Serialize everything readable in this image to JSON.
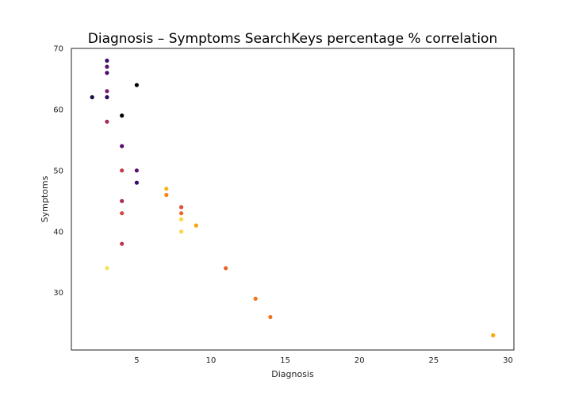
{
  "chart_data": {
    "type": "scatter",
    "title": "Diagnosis – Symptoms SearchKeys percentage % correlation",
    "xlabel": "Diagnosis",
    "ylabel": "Symptoms",
    "xlim": [
      0.6,
      30.4
    ],
    "ylim": [
      20.6,
      70.0
    ],
    "xticks": [
      5,
      10,
      15,
      20,
      25,
      30
    ],
    "yticks": [
      30,
      40,
      50,
      60,
      70
    ],
    "grid": false,
    "colormap": "inferno",
    "points": [
      {
        "x": 3,
        "y": 68,
        "color": "#3b0f70"
      },
      {
        "x": 3,
        "y": 67,
        "color": "#5c126e"
      },
      {
        "x": 3,
        "y": 66,
        "color": "#4a0c6b"
      },
      {
        "x": 5,
        "y": 64,
        "color": "#000004"
      },
      {
        "x": 3,
        "y": 63,
        "color": "#7e1e6c"
      },
      {
        "x": 2,
        "y": 62,
        "color": "#1b0c41"
      },
      {
        "x": 3,
        "y": 62,
        "color": "#2a0b55"
      },
      {
        "x": 4,
        "y": 59,
        "color": "#000004"
      },
      {
        "x": 3,
        "y": 58,
        "color": "#a32b5f"
      },
      {
        "x": 4,
        "y": 54,
        "color": "#57106e"
      },
      {
        "x": 4,
        "y": 50,
        "color": "#c73a4a"
      },
      {
        "x": 5,
        "y": 50,
        "color": "#5c126e"
      },
      {
        "x": 5,
        "y": 48,
        "color": "#36096a"
      },
      {
        "x": 4,
        "y": 45,
        "color": "#a82d5b"
      },
      {
        "x": 4,
        "y": 43,
        "color": "#d44842"
      },
      {
        "x": 4,
        "y": 38,
        "color": "#bc3754"
      },
      {
        "x": 3,
        "y": 34,
        "color": "#f3e35a"
      },
      {
        "x": 7,
        "y": 47,
        "color": "#f9b51c"
      },
      {
        "x": 7,
        "y": 46,
        "color": "#f78311"
      },
      {
        "x": 8,
        "y": 44,
        "color": "#dd513a"
      },
      {
        "x": 8,
        "y": 43,
        "color": "#ed6925"
      },
      {
        "x": 8,
        "y": 42,
        "color": "#fcd63f"
      },
      {
        "x": 8,
        "y": 40,
        "color": "#f6d645"
      },
      {
        "x": 9,
        "y": 41,
        "color": "#fba40a"
      },
      {
        "x": 11,
        "y": 34,
        "color": "#ec6424"
      },
      {
        "x": 13,
        "y": 29,
        "color": "#f3761b"
      },
      {
        "x": 14,
        "y": 26,
        "color": "#f3771a"
      },
      {
        "x": 29,
        "y": 23,
        "color": "#fca50a"
      }
    ]
  }
}
